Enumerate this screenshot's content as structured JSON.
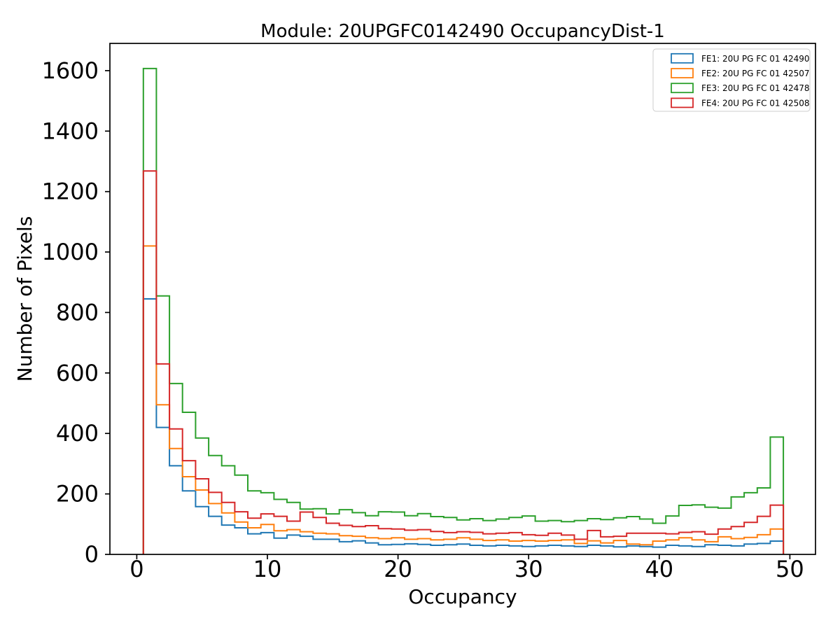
{
  "chart_data": {
    "type": "step-histogram",
    "title": "Module: 20UPGFC0142490 OccupancyDist-1",
    "xlabel": "Occupancy",
    "ylabel": "Number of Pixels",
    "grid": false,
    "legend_position": "upper right",
    "xlim": [
      -2.06,
      51.96
    ],
    "ylim": [
      0,
      1690
    ],
    "xticks": [
      0,
      10,
      20,
      30,
      40,
      50
    ],
    "yticks": [
      0,
      200,
      400,
      600,
      800,
      1000,
      1200,
      1400,
      1600
    ],
    "bins": {
      "start": 0.5,
      "width": 1,
      "count": 49
    },
    "series": [
      {
        "name": "FE1: 20U PG FC 01 42490",
        "id": "fe1",
        "color": "#1f77b4",
        "values": [
          845,
          420,
          293,
          210,
          158,
          126,
          97,
          88,
          68,
          72,
          54,
          64,
          60,
          50,
          50,
          42,
          45,
          38,
          32,
          33,
          35,
          33,
          30,
          32,
          34,
          30,
          28,
          30,
          28,
          26,
          28,
          30,
          28,
          26,
          30,
          28,
          25,
          28,
          26,
          24,
          30,
          28,
          26,
          32,
          30,
          28,
          34,
          36,
          44
        ]
      },
      {
        "name": "FE2: 20U PG FC 01 42507",
        "id": "fe2",
        "color": "#ff7f0e",
        "values": [
          1020,
          495,
          350,
          257,
          213,
          168,
          137,
          107,
          88,
          99,
          78,
          82,
          75,
          70,
          68,
          62,
          60,
          55,
          52,
          55,
          50,
          52,
          48,
          50,
          55,
          50,
          46,
          48,
          44,
          46,
          44,
          46,
          48,
          36,
          45,
          38,
          46,
          34,
          32,
          44,
          48,
          55,
          48,
          42,
          58,
          52,
          56,
          65,
          84
        ]
      },
      {
        "name": "FE3: 20U PG FC 01 42478",
        "id": "fe3",
        "color": "#2ca02c",
        "values": [
          1607,
          855,
          565,
          470,
          385,
          327,
          293,
          262,
          210,
          204,
          182,
          172,
          150,
          151,
          134,
          148,
          138,
          128,
          141,
          140,
          128,
          135,
          125,
          122,
          114,
          118,
          112,
          117,
          122,
          127,
          110,
          112,
          108,
          112,
          118,
          115,
          121,
          125,
          117,
          103,
          127,
          162,
          164,
          156,
          153,
          190,
          204,
          220,
          388
        ]
      },
      {
        "name": "FE4: 20U PG FC 01 42508",
        "id": "fe4",
        "color": "#d62728",
        "values": [
          1268,
          630,
          415,
          310,
          250,
          205,
          172,
          141,
          120,
          134,
          126,
          110,
          140,
          122,
          103,
          96,
          92,
          95,
          85,
          84,
          80,
          82,
          76,
          72,
          75,
          73,
          68,
          70,
          72,
          65,
          63,
          70,
          64,
          50,
          79,
          58,
          60,
          70,
          70,
          70,
          68,
          73,
          75,
          67,
          84,
          92,
          106,
          126,
          163
        ]
      }
    ]
  }
}
